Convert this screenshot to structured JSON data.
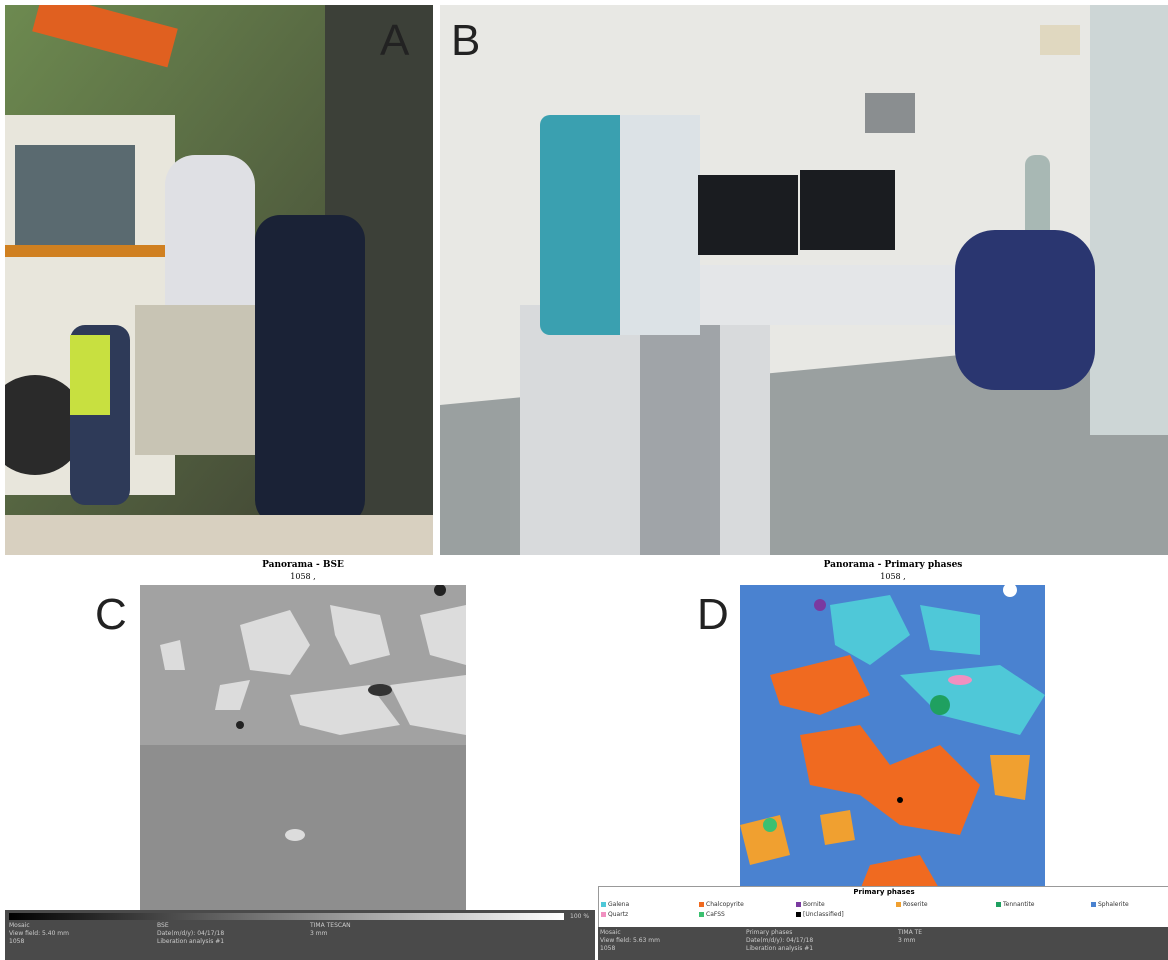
{
  "panels": [
    {
      "label": "A"
    },
    {
      "label": "B"
    },
    {
      "label": "C",
      "title": "Panorama - BSE",
      "subtitle": "1058 ,"
    },
    {
      "label": "D",
      "title": "Panorama - Primary phases",
      "subtitle": "1058 ,"
    }
  ],
  "left_status": {
    "scale_max": "100 %",
    "rows": [
      [
        "Mosaic",
        "BSE",
        "TIMA TESCAN"
      ],
      [
        "View field: 5.40 mm",
        "Date(m/d/y): 04/17/18",
        "3 mm"
      ],
      [
        "1058",
        "Liberation analysis #1",
        ""
      ]
    ]
  },
  "legend": {
    "title": "Primary phases",
    "items": [
      {
        "name": "Galena",
        "color": "#4fc8d8"
      },
      {
        "name": "Chalcopyrite",
        "color": "#f06a20"
      },
      {
        "name": "Bornite",
        "color": "#7a3aa0"
      },
      {
        "name": "Roserite",
        "color": "#f0a030"
      },
      {
        "name": "Tennantite",
        "color": "#1fa060"
      },
      {
        "name": "Sphalerite",
        "color": "#4a82d0"
      },
      {
        "name": "Quartz",
        "color": "#f090c0"
      },
      {
        "name": "CaFSS",
        "color": "#3cc070"
      },
      {
        "name": "[Unclassified]",
        "color": "#000000"
      }
    ]
  },
  "right_status": {
    "rows": [
      [
        "Mosaic",
        "Primary phases",
        "TIMA TE"
      ],
      [
        "View field: 5.63 mm",
        "Date(m/d/y): 04/17/18",
        "3 mm"
      ],
      [
        "1058",
        "Liberation analysis #1",
        ""
      ]
    ]
  }
}
